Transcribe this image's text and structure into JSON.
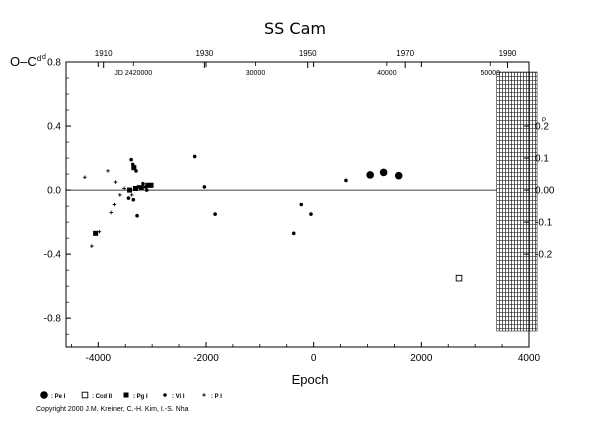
{
  "chart_data": {
    "type": "scatter",
    "title": "SS Cam",
    "xlabel": "Epoch",
    "ylabel": "O–C",
    "ylabel_unit_superscript": "d",
    "xlim": [
      -4600,
      4000
    ],
    "ylim": [
      -0.98,
      0.8
    ],
    "xticks": [
      -4000,
      -2000,
      0,
      2000,
      4000
    ],
    "xtick_labels": [
      "-4000",
      "-2000",
      "0",
      "2000",
      "4000"
    ],
    "yticks": [
      -0.8,
      -0.4,
      0.0,
      0.4,
      0.8
    ],
    "ytick_labels": [
      "-0.8",
      "-0.4",
      "0.0",
      "0.4",
      "0.8"
    ],
    "top_year_ticks": [
      {
        "label": "1910",
        "x": -3900
      },
      {
        "label": "1930",
        "x": -2030
      },
      {
        "label": "1950",
        "x": -110
      },
      {
        "label": "1970",
        "x": 1700
      },
      {
        "label": "1990",
        "x": 3600
      }
    ],
    "top_jd_ticks": [
      {
        "label": "JD 2420000",
        "x": -3350
      },
      {
        "label": "30000",
        "x": -1080
      },
      {
        "label": "40000",
        "x": 1360
      },
      {
        "label": "50000",
        "x": 3280
      }
    ],
    "right_axis": {
      "ticks": [
        0.2,
        0.1,
        0.0,
        -0.1,
        -0.2
      ],
      "tick_labels": [
        "0.2",
        "0.1",
        "0.00",
        "-0.1",
        "-0.2"
      ],
      "unit_superscript": "P"
    },
    "hatched_region": {
      "x_from": 3400,
      "x_to": 4150
    },
    "zero_line": 0.0,
    "series": [
      {
        "name": ": Pe I",
        "marker": "filled-circle-large",
        "points": [
          [
            1050,
            0.095
          ],
          [
            1300,
            0.11
          ],
          [
            1580,
            0.09
          ]
        ]
      },
      {
        "name": ": Ccd II",
        "marker": "open-square",
        "points": [
          [
            2700,
            -0.55
          ]
        ]
      },
      {
        "name": ": Pg I",
        "marker": "filled-square",
        "points": [
          [
            -3420,
            0.0
          ],
          [
            -3310,
            0.01
          ],
          [
            -3200,
            0.015
          ],
          [
            -3080,
            0.03
          ],
          [
            -3020,
            0.03
          ],
          [
            -3340,
            0.14
          ],
          [
            -4050,
            -0.27
          ]
        ]
      },
      {
        "name": ": Vi I",
        "marker": "filled-circle-small",
        "points": [
          [
            -3390,
            0.19
          ],
          [
            -3360,
            0.16
          ],
          [
            -3300,
            0.12
          ],
          [
            -3280,
            -0.16
          ],
          [
            -3350,
            -0.06
          ],
          [
            -3440,
            -0.05
          ],
          [
            -3260,
            0.02
          ],
          [
            -3120,
            0.02
          ],
          [
            -3170,
            0.04
          ],
          [
            -3100,
            0.0
          ],
          [
            -2210,
            0.21
          ],
          [
            -2030,
            0.02
          ],
          [
            -1830,
            -0.15
          ],
          [
            -370,
            -0.27
          ],
          [
            -230,
            -0.09
          ],
          [
            -50,
            -0.15
          ],
          [
            600,
            0.06
          ]
        ]
      },
      {
        "name": ": P I",
        "marker": "plus",
        "points": [
          [
            -4250,
            0.08
          ],
          [
            -4120,
            -0.35
          ],
          [
            -3980,
            -0.26
          ],
          [
            -3820,
            0.12
          ],
          [
            -3700,
            -0.09
          ],
          [
            -3760,
            -0.14
          ],
          [
            -3680,
            0.05
          ],
          [
            -3600,
            -0.03
          ],
          [
            -3520,
            0.01
          ],
          [
            -3380,
            -0.03
          ]
        ]
      }
    ],
    "legend_position": "bottom-left"
  },
  "copyright": "Copyright 2000 J.M. Kreiner, C.-H. Kim, I.-S. Nha"
}
